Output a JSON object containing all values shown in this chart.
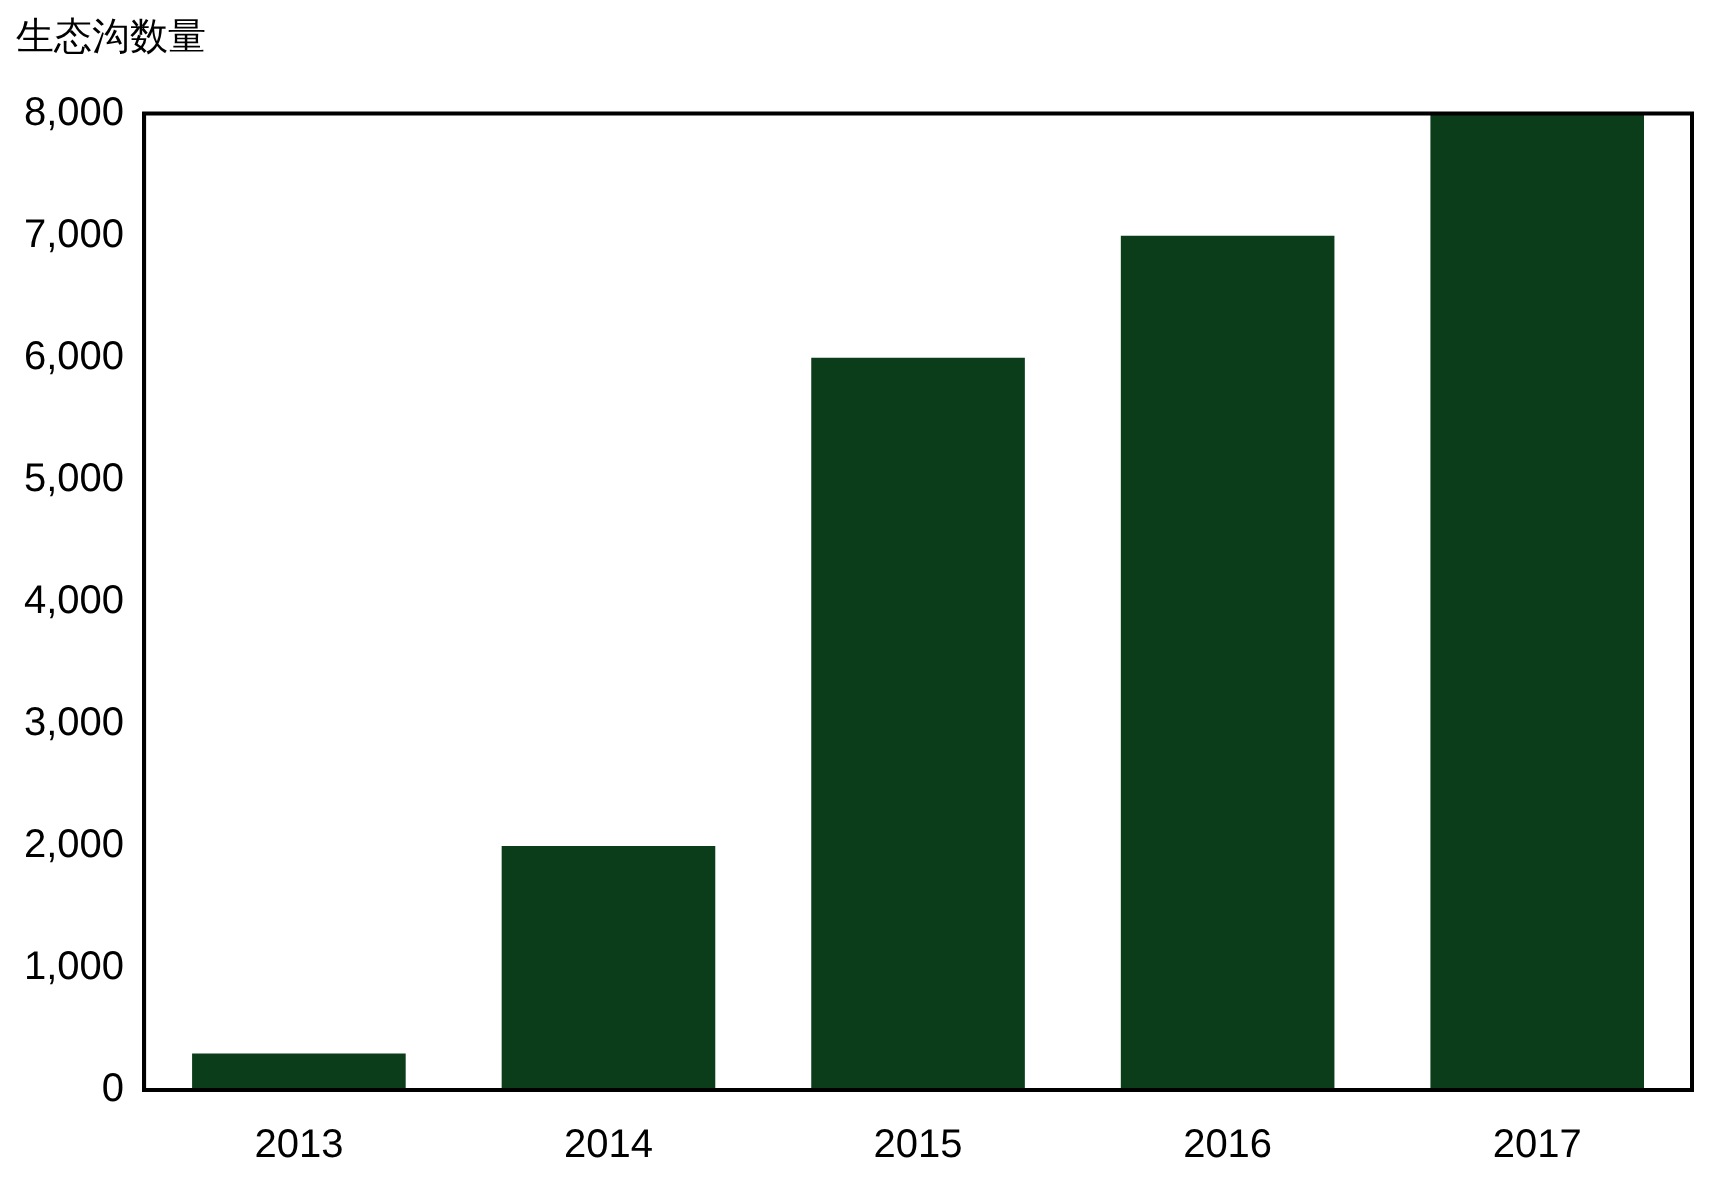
{
  "chart_data": {
    "type": "bar",
    "title": "生态沟数量",
    "categories": [
      "2013",
      "2014",
      "2015",
      "2016",
      "2017"
    ],
    "values": [
      300,
      2000,
      6000,
      7000,
      8000
    ],
    "color": "#0b3d1a",
    "ylim": [
      0,
      8000
    ],
    "yticks": [
      {
        "value": 0,
        "label": "0"
      },
      {
        "value": 1000,
        "label": "1,000"
      },
      {
        "value": 2000,
        "label": "2,000"
      },
      {
        "value": 3000,
        "label": "3,000"
      },
      {
        "value": 4000,
        "label": "4,000"
      },
      {
        "value": 5000,
        "label": "5,000"
      },
      {
        "value": 6000,
        "label": "6,000"
      },
      {
        "value": 7000,
        "label": "7,000"
      },
      {
        "value": 8000,
        "label": "8,000"
      }
    ],
    "grid": false,
    "legend": false
  }
}
